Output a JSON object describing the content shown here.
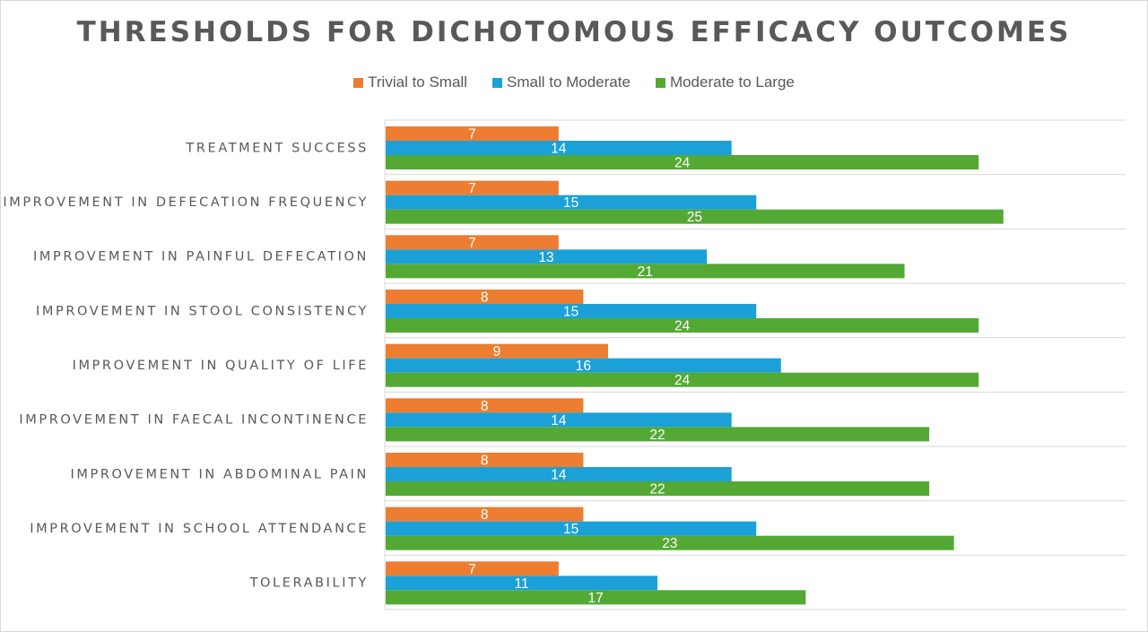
{
  "chart_data": {
    "type": "bar",
    "orientation": "horizontal",
    "title": "THRESHOLDS FOR DICHOTOMOUS EFFICACY OUTCOMES",
    "categories": [
      "TREATMENT SUCCESS",
      "IMPROVEMENT IN DEFECATION FREQUENCY",
      "IMPROVEMENT IN PAINFUL DEFECATION",
      "IMPROVEMENT IN STOOL CONSISTENCY",
      "IMPROVEMENT IN QUALITY OF LIFE",
      "IMPROVEMENT IN FAECAL INCONTINENCE",
      "IMPROVEMENT IN ABDOMINAL PAIN",
      "IMPROVEMENT IN SCHOOL ATTENDANCE",
      "TOLERABILITY"
    ],
    "series": [
      {
        "name": "Trivial to Small",
        "color": "#ED7D31",
        "values": [
          7,
          7,
          7,
          8,
          9,
          8,
          8,
          8,
          7
        ]
      },
      {
        "name": "Small to Moderate",
        "color": "#1BA1D8",
        "values": [
          14,
          15,
          13,
          15,
          16,
          14,
          14,
          15,
          11
        ]
      },
      {
        "name": "Moderate to Large",
        "color": "#53A934",
        "values": [
          24,
          25,
          21,
          24,
          24,
          22,
          22,
          23,
          17
        ]
      }
    ],
    "xlim": [
      0,
      30
    ],
    "legend": "top",
    "xlabel": "",
    "ylabel": ""
  }
}
